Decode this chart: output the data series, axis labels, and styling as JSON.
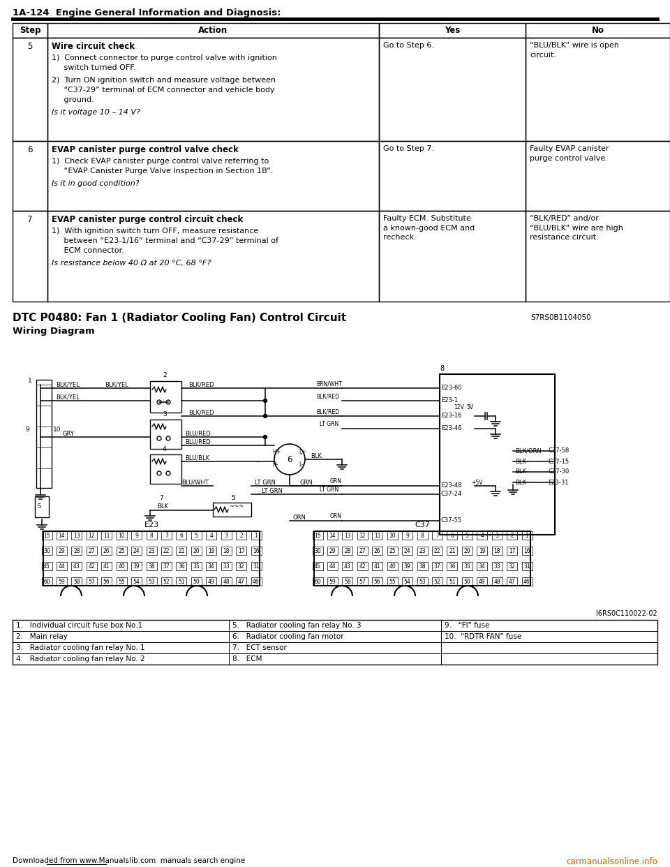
{
  "page_header": "1A-124  Engine General Information and Diagnosis:",
  "table_headers": [
    "Step",
    "Action",
    "Yes",
    "No"
  ],
  "rows": [
    {
      "step": "5",
      "action_bold": "Wire circuit check",
      "action_lines": [
        [
          "bold",
          "Wire circuit check"
        ],
        [
          "normal",
          ""
        ],
        [
          "normal",
          "1)  Connect connector to purge control valve with ignition"
        ],
        [
          "normal",
          "     switch turned OFF."
        ],
        [
          "normal",
          ""
        ],
        [
          "normal",
          "2)  Turn ON ignition switch and measure voltage between"
        ],
        [
          "normal",
          "     “C37-29” terminal of ECM connector and vehicle body"
        ],
        [
          "normal",
          "     ground."
        ],
        [
          "normal",
          ""
        ],
        [
          "italic",
          "Is it voltage 10 – 14 V?"
        ]
      ],
      "yes": "Go to Step 6.",
      "no": "“BLU/BLK” wire is open\ncircuit."
    },
    {
      "step": "6",
      "action_lines": [
        [
          "bold",
          "EVAP canister purge control valve check"
        ],
        [
          "normal",
          ""
        ],
        [
          "normal",
          "1)  Check EVAP canister purge control valve referring to"
        ],
        [
          "normal",
          "     “EVAP Canister Purge Valve Inspection in Section 1B”."
        ],
        [
          "normal",
          ""
        ],
        [
          "italic",
          "Is it in good condition?"
        ]
      ],
      "yes": "Go to Step 7.",
      "no": "Faulty EVAP canister\npurge control valve."
    },
    {
      "step": "7",
      "action_lines": [
        [
          "bold",
          "EVAP canister purge control circuit check"
        ],
        [
          "normal",
          ""
        ],
        [
          "normal",
          "1)  With ignition switch turn OFF, measure resistance"
        ],
        [
          "normal",
          "     between “E23-1/16” terminal and “C37-29” terminal of"
        ],
        [
          "normal",
          "     ECM connector."
        ],
        [
          "normal",
          ""
        ],
        [
          "italic",
          "Is resistance below 40 Ω at 20 °C, 68 °F?"
        ]
      ],
      "yes": "Faulty ECM. Substitute\na known-good ECM and\nrecheck.",
      "no": "“BLK/RED” and/or\n“BLU/BLK” wire are high\nresistance circuit."
    }
  ],
  "dtc_title": "DTC P0480: Fan 1 (Radiator Cooling Fan) Control Circuit",
  "dtc_code": "S7RS0B1104050",
  "wiring_title": "Wiring Diagram",
  "img_ref": "I6RS0C110022-02",
  "legend_items": [
    [
      "1.   Individual circuit fuse box No.1",
      "5.   Radiator cooling fan relay No. 3",
      "9.   “FI” fuse"
    ],
    [
      "2.   Main relay",
      "6.   Radiator cooling fan motor",
      "10.  “RDTR FAN” fuse"
    ],
    [
      "3.   Radiator cooling fan relay No. 1",
      "7.   ECT sensor",
      ""
    ],
    [
      "4.   Radiator cooling fan relay No. 2",
      "8.   ECM",
      ""
    ]
  ],
  "footer_left": "Downloaded from www.Manualslib.com  manuals search engine",
  "footer_right": "carmanualsonline.info"
}
